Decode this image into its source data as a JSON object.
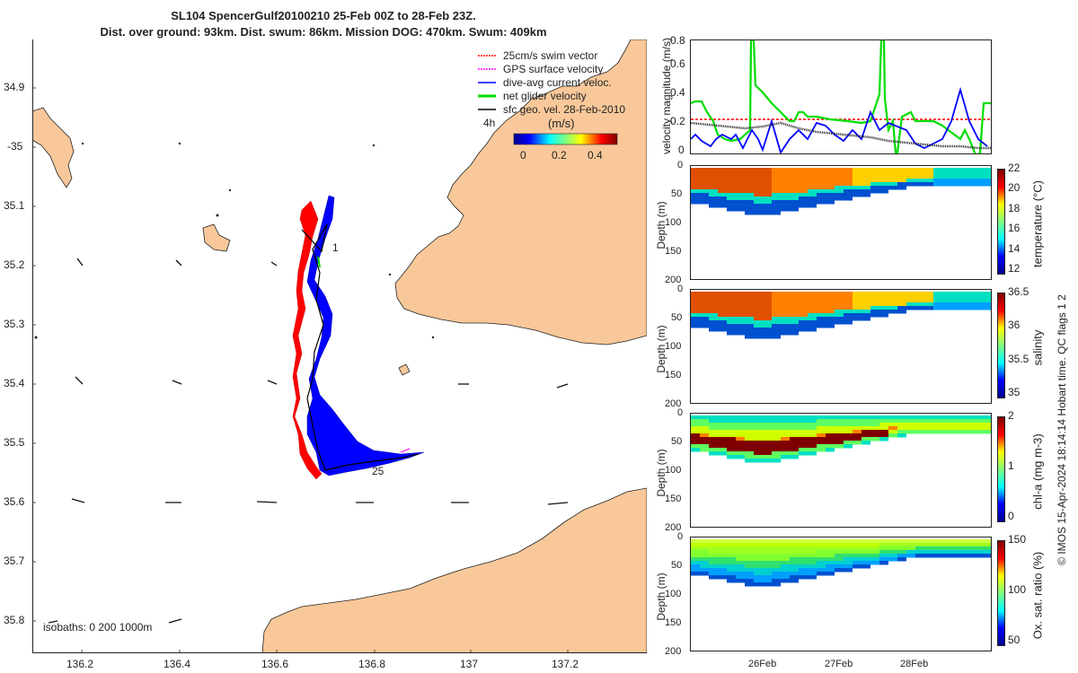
{
  "title": {
    "line1": "SL104 SpencerGulf20100210 25-Feb 00Z to 28-Feb 23Z.",
    "line2": "Dist. over ground: 93km. Dist. swum: 86km. Mission DOG: 470km. Swum: 409km"
  },
  "map": {
    "lat_ticks": [
      "34.9",
      "-35",
      "35.1",
      "35.2",
      "35.3",
      "35.4",
      "35.5",
      "35.6",
      "35.7",
      "35.8"
    ],
    "lon_ticks": [
      "136.2",
      "136.4",
      "136.6",
      "136.8",
      "137",
      "137.2"
    ],
    "legend": {
      "swim": "25cm/s swim vector",
      "gps": "GPS surface velocity",
      "dive": "dive-avg current veloc.",
      "net": "net glider velocity",
      "geo": "sfc geo. vel. 28-Feb-2010",
      "interval": "4h"
    },
    "colorbar": {
      "label": "(m/s)",
      "ticks": [
        "0",
        "0.2",
        "0.4"
      ]
    },
    "isobaths": "isobaths: 0   200  1000m",
    "track_start": "1",
    "track_end": "25",
    "colors": {
      "land": "#f9c89a",
      "sea": "#ffffff",
      "swim": "#ff0000",
      "dive": "#0000ff",
      "net": "#00dd00"
    }
  },
  "velocity_panel": {
    "ylabel": "velocity magnitude (m/s)",
    "yticks": [
      "0",
      "0.2",
      "0.4",
      "0.6",
      "0.8"
    ]
  },
  "profiles": [
    {
      "label": "temperature (°C)",
      "ticks": [
        "22",
        "20",
        "18",
        "16",
        "14",
        "12"
      ]
    },
    {
      "label": "salinity",
      "ticks": [
        "36.5",
        "36",
        "35.5",
        "35"
      ]
    },
    {
      "label": "chl-a (mg m-3)",
      "ticks": [
        "2",
        "1",
        "0"
      ]
    },
    {
      "label": "Ox. sat. ratio (%)",
      "ticks": [
        "150",
        "100",
        "50"
      ]
    }
  ],
  "depth_axis": {
    "label": "Depth (m)",
    "ticks": [
      "0",
      "50",
      "100",
      "150",
      "200"
    ]
  },
  "time_ticks": [
    "26Feb",
    "27Feb",
    "28Feb"
  ],
  "footer": {
    "credit": "© IMOS 15-Apr-2024 18:14:14 Hobart time. QC flags 1  2"
  }
}
